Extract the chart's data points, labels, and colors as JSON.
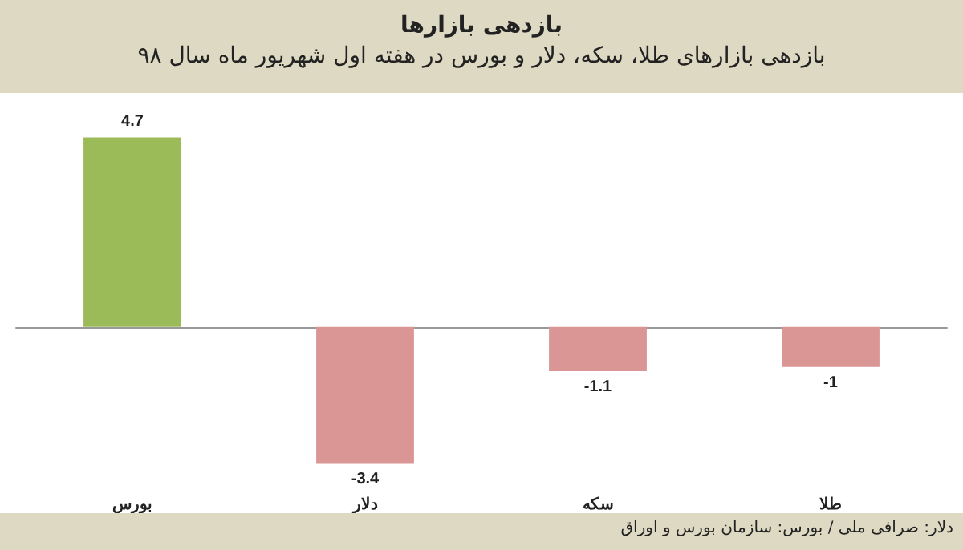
{
  "chart_data": {
    "type": "bar",
    "title": "بازدهی بازارها",
    "subtitle": "بازدهی بازارهای طلا، سکه، دلار و بورس در هفته اول شهریور ماه سال ۹۸",
    "categories": [
      "بورس",
      "دلار",
      "سکه",
      "طلا"
    ],
    "values": [
      4.7,
      -3.4,
      -1.1,
      -1
    ],
    "colors": [
      "#9bbb59",
      "#d99694",
      "#d99694",
      "#d99694"
    ],
    "data_labels": true,
    "grid": false,
    "annotations": [
      "دلار: صرافی ملی / بورس: سازمان بورس و اوراق"
    ]
  }
}
